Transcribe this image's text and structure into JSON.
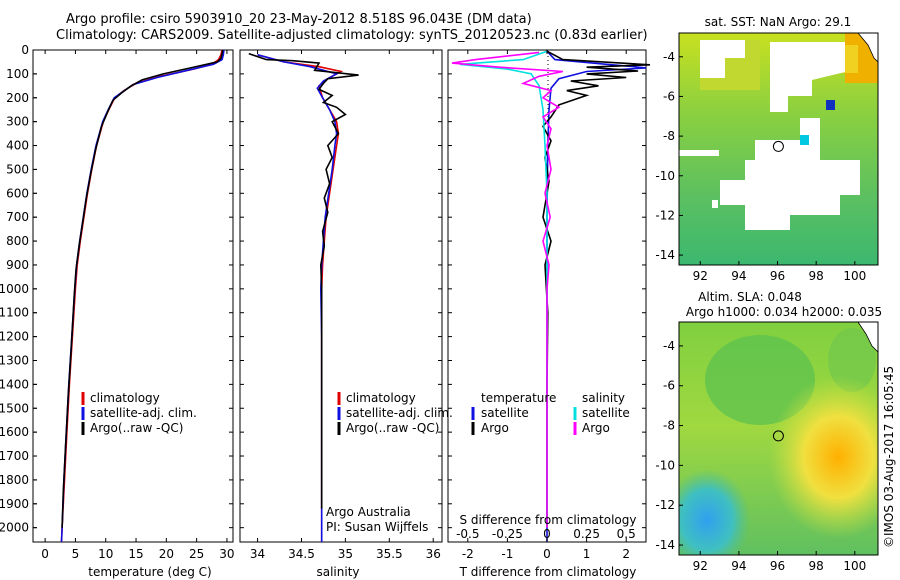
{
  "header": {
    "title_line1": "Argo profile: csiro 5903910_20 23-May-2012 8.518S 96.043E (DM data)",
    "title_line2": "Climatology: CARS2009. Satellite-adjusted climatology: synTS_20120523.nc (0.83d earlier)"
  },
  "colors": {
    "climatology": "#e00000",
    "satellite": "#1010e0",
    "argo": "#000000",
    "salinity_diff": "#00e0e0",
    "argo_salinity_diff": "#ff00ff"
  },
  "chart_data": [
    {
      "id": "temperature",
      "type": "line",
      "xlabel": "temperature (deg C)",
      "ylabel": "depth",
      "xlim": [
        -2,
        31
      ],
      "ylim": [
        2060,
        0
      ],
      "xticks": [
        0,
        5,
        10,
        15,
        20,
        25,
        30
      ],
      "yticks": [
        0,
        100,
        200,
        300,
        400,
        500,
        600,
        700,
        800,
        900,
        1000,
        1100,
        1200,
        1300,
        1400,
        1500,
        1600,
        1700,
        1800,
        1900,
        2000
      ],
      "legend": [
        "climatology",
        "satellite-adj. clim.",
        "Argo(..raw -QC)"
      ],
      "series": [
        {
          "name": "climatology",
          "color": "#e00000",
          "points": [
            [
              29.2,
              0
            ],
            [
              29.0,
              20
            ],
            [
              28.6,
              40
            ],
            [
              27.5,
              60
            ],
            [
              24.5,
              80
            ],
            [
              19,
              110
            ],
            [
              15,
              140
            ],
            [
              13,
              170
            ],
            [
              11.5,
              200
            ],
            [
              10.5,
              250
            ],
            [
              9.6,
              300
            ],
            [
              8.5,
              400
            ],
            [
              7.7,
              500
            ],
            [
              7.0,
              600
            ],
            [
              6.4,
              700
            ],
            [
              5.8,
              800
            ],
            [
              5.3,
              900
            ],
            [
              5.0,
              1000
            ],
            [
              4.5,
              1200
            ],
            [
              4.0,
              1400
            ],
            [
              3.6,
              1600
            ],
            [
              3.2,
              1800
            ],
            [
              2.8,
              2000
            ],
            [
              2.7,
              2060
            ]
          ]
        },
        {
          "name": "satellite-adj. clim.",
          "color": "#1010e0",
          "points": [
            [
              29.5,
              0
            ],
            [
              29.4,
              20
            ],
            [
              29.2,
              40
            ],
            [
              27.8,
              60
            ],
            [
              23.5,
              85
            ],
            [
              18.5,
              115
            ],
            [
              14.5,
              145
            ],
            [
              12.8,
              175
            ],
            [
              11.4,
              200
            ],
            [
              10.4,
              250
            ],
            [
              9.5,
              300
            ],
            [
              8.4,
              400
            ],
            [
              7.6,
              500
            ],
            [
              6.9,
              600
            ],
            [
              6.3,
              700
            ],
            [
              5.7,
              800
            ],
            [
              5.2,
              900
            ],
            [
              4.9,
              1000
            ],
            [
              4.4,
              1200
            ],
            [
              3.9,
              1400
            ],
            [
              3.5,
              1600
            ],
            [
              3.1,
              1800
            ],
            [
              2.8,
              2000
            ],
            [
              2.7,
              2060
            ]
          ]
        },
        {
          "name": "Argo(..raw -QC)",
          "color": "#000000",
          "points": [
            [
              29.3,
              0
            ],
            [
              29.2,
              15
            ],
            [
              29.0,
              35
            ],
            [
              28.4,
              50
            ],
            [
              24,
              75
            ],
            [
              19.5,
              100
            ],
            [
              16,
              125
            ],
            [
              14.2,
              150
            ],
            [
              12.6,
              180
            ],
            [
              11.2,
              210
            ],
            [
              10.3,
              260
            ],
            [
              9.3,
              320
            ],
            [
              8.3,
              420
            ],
            [
              7.5,
              520
            ],
            [
              6.8,
              620
            ],
            [
              6.2,
              720
            ],
            [
              5.6,
              820
            ],
            [
              5.1,
              920
            ],
            [
              4.8,
              1030
            ],
            [
              4.3,
              1250
            ],
            [
              3.8,
              1450
            ],
            [
              3.4,
              1650
            ],
            [
              3.0,
              1850
            ],
            [
              2.8,
              2000
            ]
          ]
        }
      ]
    },
    {
      "id": "salinity",
      "type": "line",
      "xlabel": "salinity",
      "xlim": [
        33.8,
        36.1
      ],
      "ylim": [
        2060,
        0
      ],
      "xticks": [
        34,
        34.5,
        35,
        35.5,
        36
      ],
      "legend": [
        "climatology",
        "satellite-adj. clim.",
        "Argo(..raw -QC)"
      ],
      "annotation": [
        "Argo Australia",
        "PI: Susan Wijffels"
      ],
      "series": [
        {
          "name": "climatology",
          "color": "#e00000",
          "points": [
            [
              34.0,
              20
            ],
            [
              34.3,
              50
            ],
            [
              34.7,
              70
            ],
            [
              34.95,
              90
            ],
            [
              34.8,
              120
            ],
            [
              34.7,
              150
            ],
            [
              34.74,
              200
            ],
            [
              34.82,
              250
            ],
            [
              34.9,
              300
            ],
            [
              34.92,
              350
            ],
            [
              34.9,
              400
            ],
            [
              34.86,
              500
            ],
            [
              34.82,
              600
            ],
            [
              34.78,
              700
            ],
            [
              34.76,
              800
            ],
            [
              34.74,
              900
            ],
            [
              34.73,
              1000
            ],
            [
              34.73,
              1200
            ],
            [
              34.73,
              1400
            ],
            [
              34.73,
              1600
            ],
            [
              34.73,
              1800
            ],
            [
              34.73,
              2000
            ],
            [
              34.73,
              2060
            ]
          ]
        },
        {
          "name": "satellite-adj. clim.",
          "color": "#1010e0",
          "points": [
            [
              34.0,
              20
            ],
            [
              34.3,
              50
            ],
            [
              34.6,
              70
            ],
            [
              34.9,
              100
            ],
            [
              34.75,
              130
            ],
            [
              34.68,
              160
            ],
            [
              34.74,
              200
            ],
            [
              34.82,
              250
            ],
            [
              34.88,
              300
            ],
            [
              34.9,
              350
            ],
            [
              34.88,
              400
            ],
            [
              34.85,
              500
            ],
            [
              34.81,
              600
            ],
            [
              34.77,
              700
            ],
            [
              34.75,
              800
            ],
            [
              34.73,
              900
            ],
            [
              34.72,
              1000
            ],
            [
              34.73,
              1200
            ],
            [
              34.73,
              1400
            ],
            [
              34.73,
              1600
            ],
            [
              34.73,
              1800
            ],
            [
              34.73,
              2000
            ],
            [
              34.73,
              2060
            ]
          ]
        },
        {
          "name": "Argo(..raw -QC)",
          "color": "#000000",
          "points": [
            [
              33.9,
              15
            ],
            [
              34.1,
              40
            ],
            [
              34.4,
              45
            ],
            [
              34.7,
              55
            ],
            [
              34.65,
              85
            ],
            [
              35.15,
              105
            ],
            [
              34.8,
              120
            ],
            [
              34.75,
              140
            ],
            [
              34.7,
              165
            ],
            [
              34.85,
              190
            ],
            [
              34.75,
              220
            ],
            [
              34.9,
              240
            ],
            [
              35.0,
              270
            ],
            [
              34.85,
              300
            ],
            [
              34.92,
              350
            ],
            [
              34.8,
              400
            ],
            [
              34.85,
              450
            ],
            [
              34.78,
              500
            ],
            [
              34.82,
              560
            ],
            [
              34.76,
              620
            ],
            [
              34.8,
              680
            ],
            [
              34.74,
              760
            ],
            [
              34.76,
              820
            ],
            [
              34.72,
              900
            ],
            [
              34.73,
              1000
            ],
            [
              34.73,
              1200
            ],
            [
              34.73,
              1400
            ],
            [
              34.73,
              1600
            ],
            [
              34.73,
              1800
            ],
            [
              34.73,
              1920
            ]
          ]
        }
      ]
    },
    {
      "id": "difference",
      "type": "line",
      "xlabel": "T difference from climatology",
      "top_label": "S difference from climatology",
      "xlim": [
        -2.5,
        2.5
      ],
      "ylim": [
        2060,
        0
      ],
      "xticks": [
        -2,
        -1,
        0,
        1,
        2
      ],
      "xticks_top": [
        -0.5,
        -0.25,
        0,
        0.25,
        0.5
      ],
      "legend_temperature_title": "temperature",
      "legend_salinity_title": "salinity",
      "legend_temperature": [
        "satellite",
        "Argo"
      ],
      "legend_salinity": [
        "satellite",
        "Argo"
      ],
      "series": [
        {
          "name": "T satellite",
          "color": "#1010e0",
          "points": [
            [
              0,
              5
            ],
            [
              0.2,
              40
            ],
            [
              1.5,
              60
            ],
            [
              2.2,
              70
            ],
            [
              2.5,
              75
            ],
            [
              1.0,
              90
            ],
            [
              0.3,
              120
            ],
            [
              0.1,
              160
            ],
            [
              0.05,
              250
            ],
            [
              0.02,
              400
            ],
            [
              0.0,
              700
            ],
            [
              0.0,
              1000
            ],
            [
              0.0,
              1500
            ],
            [
              0.0,
              2060
            ]
          ]
        },
        {
          "name": "T Argo",
          "color": "#000000",
          "points": [
            [
              0,
              5
            ],
            [
              0.4,
              40
            ],
            [
              2.6,
              62
            ],
            [
              1.0,
              72
            ],
            [
              2.3,
              88
            ],
            [
              1.0,
              100
            ],
            [
              2.0,
              115
            ],
            [
              0.6,
              130
            ],
            [
              1.3,
              150
            ],
            [
              0.5,
              170
            ],
            [
              1.0,
              190
            ],
            [
              0.3,
              230
            ],
            [
              0.1,
              280
            ],
            [
              -0.1,
              320
            ],
            [
              0.1,
              380
            ],
            [
              -0.05,
              450
            ],
            [
              0.05,
              550
            ],
            [
              -0.1,
              700
            ],
            [
              0.1,
              800
            ],
            [
              -0.05,
              900
            ],
            [
              0.02,
              1100
            ],
            [
              0,
              1400
            ],
            [
              0,
              2000
            ]
          ]
        },
        {
          "name": "S satellite",
          "color": "#00e0e0",
          "points": [
            [
              0,
              5
            ],
            [
              -0.6,
              40
            ],
            [
              -2.2,
              60
            ],
            [
              -1.0,
              80
            ],
            [
              -0.4,
              100
            ],
            [
              -0.2,
              150
            ],
            [
              -0.1,
              250
            ],
            [
              -0.05,
              400
            ],
            [
              0,
              600
            ],
            [
              0,
              1000
            ],
            [
              0,
              1500
            ],
            [
              0,
              2000
            ]
          ]
        },
        {
          "name": "S Argo",
          "color": "#ff00ff",
          "points": [
            [
              -0.2,
              10
            ],
            [
              -1.8,
              40
            ],
            [
              -2.4,
              55
            ],
            [
              -1.2,
              72
            ],
            [
              0.4,
              90
            ],
            [
              -0.2,
              110
            ],
            [
              -0.6,
              140
            ],
            [
              0.1,
              170
            ],
            [
              -0.1,
              200
            ],
            [
              0.3,
              240
            ],
            [
              -0.1,
              280
            ],
            [
              0.1,
              330
            ],
            [
              0,
              400
            ],
            [
              0.1,
              500
            ],
            [
              -0.05,
              600
            ],
            [
              0.08,
              700
            ],
            [
              -0.1,
              800
            ],
            [
              0.05,
              900
            ],
            [
              0,
              1000
            ],
            [
              0,
              1400
            ],
            [
              0,
              2000
            ]
          ]
        }
      ]
    }
  ],
  "maps": [
    {
      "id": "sst_map",
      "title": "sat. SST: NaN Argo: 29.1",
      "xticks": [
        92,
        94,
        96,
        98,
        100
      ],
      "yticks": [
        -4,
        -6,
        -8,
        -10,
        -12,
        -14
      ],
      "xlim": [
        90.9,
        101.2
      ],
      "ylim": [
        -14.5,
        -2.8
      ],
      "marker": {
        "lon": 96.043,
        "lat": -8.518
      }
    },
    {
      "id": "sla_map",
      "title_line1": "Altim. SLA: 0.048",
      "title_line2": "Argo h1000: 0.034 h2000: 0.035",
      "xticks": [
        92,
        94,
        96,
        98,
        100
      ],
      "yticks": [
        -4,
        -6,
        -8,
        -10,
        -12,
        -14
      ],
      "xlim": [
        90.9,
        101.2
      ],
      "ylim": [
        -14.5,
        -2.8
      ],
      "marker": {
        "lon": 96.043,
        "lat": -8.518
      }
    }
  ],
  "credit": "©IMOS 03-Aug-2017 16:05:45"
}
